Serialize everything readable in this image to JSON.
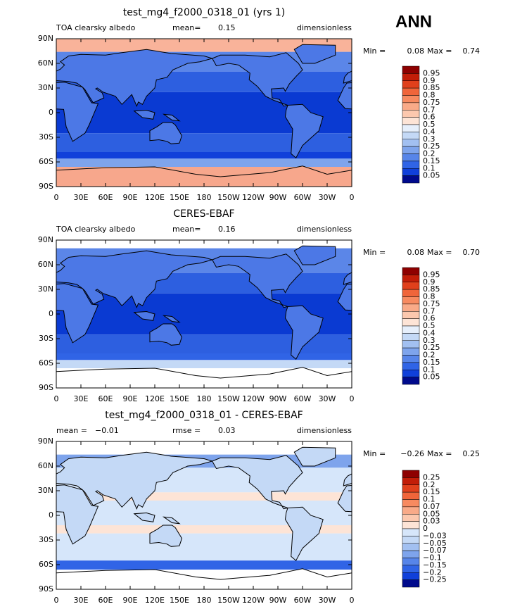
{
  "header": {
    "title": "ANN"
  },
  "xticks": [
    "0",
    "30E",
    "60E",
    "90E",
    "120E",
    "150E",
    "180",
    "150W",
    "120W",
    "90W",
    "60W",
    "30W",
    "0"
  ],
  "yticks": [
    "90N",
    "60N",
    "30N",
    "0",
    "30S",
    "60S",
    "90S"
  ],
  "panels": [
    {
      "title": "test_mg4_f2000_0318_01 (yrs 1)",
      "labels": [
        "TOA clearsky albedo",
        "mean=",
        "0.15",
        "dimensionless"
      ],
      "min_label": "Min =",
      "min": "0.08",
      "max_label": "Max =",
      "max": "0.74",
      "colorbar": {
        "levels": [
          "0.95",
          "0.9",
          "0.85",
          "0.8",
          "0.75",
          "0.7",
          "0.6",
          "0.5",
          "0.4",
          "0.3",
          "0.25",
          "0.2",
          "0.15",
          "0.1",
          "0.05"
        ],
        "colors": [
          "#8e0000",
          "#c21d08",
          "#e0401c",
          "#f0653a",
          "#f78a60",
          "#f9aa88",
          "#fcc8ae",
          "#fde4d6",
          "#e6effb",
          "#c4d9f6",
          "#a2c0f1",
          "#7ea4ec",
          "#5785e9",
          "#3064e6",
          "#1040da",
          "#000a8c"
        ]
      }
    },
    {
      "title": "CERES-EBAF",
      "labels": [
        "TOA clearsky albedo",
        "mean=",
        "0.16",
        "dimensionless"
      ],
      "min_label": "Min =",
      "min": "0.08",
      "max_label": "Max =",
      "max": "0.70",
      "colorbar": {
        "levels": [
          "0.95",
          "0.9",
          "0.85",
          "0.8",
          "0.75",
          "0.7",
          "0.6",
          "0.5",
          "0.4",
          "0.3",
          "0.25",
          "0.2",
          "0.15",
          "0.1",
          "0.05"
        ],
        "colors": [
          "#8e0000",
          "#c21d08",
          "#e0401c",
          "#f0653a",
          "#f78a60",
          "#f9aa88",
          "#fcc8ae",
          "#fde4d6",
          "#e6effb",
          "#c4d9f6",
          "#a2c0f1",
          "#7ea4ec",
          "#5785e9",
          "#3064e6",
          "#1040da",
          "#000a8c"
        ]
      }
    },
    {
      "title": "test_mg4_f2000_0318_01 - CERES-EBAF",
      "labels": [
        "mean =",
        "−0.01",
        "rmse =",
        "0.03",
        "dimensionless"
      ],
      "min_label": "Min =",
      "min": "−0.26",
      "max_label": "Max =",
      "max": "0.25",
      "colorbar": {
        "levels": [
          "0.25",
          "0.2",
          "0.15",
          "0.1",
          "0.07",
          "0.05",
          "0.03",
          "0",
          "−0.03",
          "−0.05",
          "−0.07",
          "−0.1",
          "−0.15",
          "−0.2",
          "−0.25"
        ],
        "colors": [
          "#8e0000",
          "#c21d08",
          "#e0401c",
          "#f0653a",
          "#f78a60",
          "#f9aa88",
          "#fcc8ae",
          "#fde4d6",
          "#d6e6fa",
          "#c4d9f6",
          "#a2c0f1",
          "#7ea4ec",
          "#5785e9",
          "#3064e6",
          "#1040da",
          "#000a8c"
        ]
      }
    }
  ]
}
